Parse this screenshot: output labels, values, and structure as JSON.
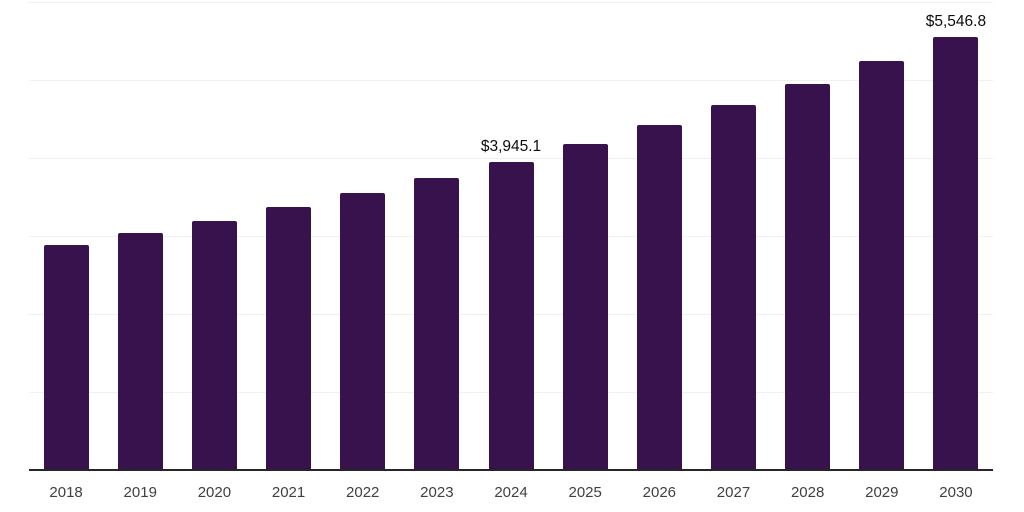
{
  "chart_data": {
    "type": "bar",
    "title": "",
    "xlabel": "",
    "ylabel": "",
    "categories": [
      "2018",
      "2019",
      "2020",
      "2021",
      "2022",
      "2023",
      "2024",
      "2025",
      "2026",
      "2027",
      "2028",
      "2029",
      "2030"
    ],
    "values": [
      2890,
      3040,
      3193,
      3373,
      3551,
      3745,
      3945.1,
      4175.7,
      4419.8,
      4678.1,
      4951.5,
      5240.9,
      5546.8
    ],
    "data_labels": [
      {
        "category": "2024",
        "text": "$3,945.1"
      },
      {
        "category": "2030",
        "text": "$5,546.8"
      }
    ],
    "ylim": [
      0,
      6000
    ],
    "grid_interval": 1000,
    "grid": "horizontal-only",
    "legend_position": "none",
    "colors": {
      "bar": "#37124D",
      "axis_line": "#262626",
      "gridline": "#f0f0f0",
      "tick_label": "#404040",
      "data_label": "#0d0d0d",
      "background": "#ffffff"
    }
  }
}
